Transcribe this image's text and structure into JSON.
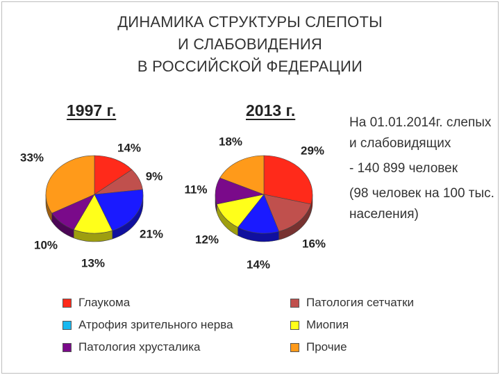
{
  "title_lines": [
    "ДИНАМИКА СТРУКТУРЫ СЛЕПОТЫ",
    "И СЛАБОВИДЕНИЯ",
    "В РОССИЙСКОЙ ФЕДЕРАЦИИ"
  ],
  "info": {
    "line1": "На 01.01.2014г. слепых и слабовидящих",
    "line2": "- 140 899 человек",
    "line3": "(98 человек на 100 тыс. населения)"
  },
  "chart_data": [
    {
      "type": "pie",
      "title": "1997 г.",
      "categories": [
        "Глаукома",
        "Патология сетчатки",
        "Атрофия зрительного нерва",
        "Миопия",
        "Патология хрусталика",
        "Прочие"
      ],
      "values": [
        14,
        9,
        21,
        13,
        10,
        33
      ],
      "labels": [
        "14%",
        "9%",
        "21%",
        "13%",
        "10%",
        "33%"
      ]
    },
    {
      "type": "pie",
      "title": "2013 г.",
      "categories": [
        "Глаукома",
        "Патология сетчатки",
        "Атрофия зрительного нерва",
        "Миопия",
        "Патология хрусталика",
        "Прочие"
      ],
      "values": [
        29,
        16,
        14,
        12,
        11,
        18
      ],
      "labels": [
        "29%",
        "16%",
        "14%",
        "12%",
        "11%",
        "18%"
      ]
    }
  ],
  "legend": [
    {
      "label": "Глаукома",
      "color": "#ff2a1a"
    },
    {
      "label": "Патология сетчатки",
      "color": "#c0504d"
    },
    {
      "label": "Атрофия зрительного нерва",
      "color": "#18b8f0"
    },
    {
      "label": "Миопия",
      "color": "#ffff1a"
    },
    {
      "label": "Патология хрусталика",
      "color": "#7a0a8a"
    },
    {
      "label": "Прочие",
      "color": "#ff9a1a"
    }
  ],
  "slice_colors": [
    "#ff2a1a",
    "#c0504d",
    "#1a1aff",
    "#ffff1a",
    "#7a0a8a",
    "#ff9a1a"
  ]
}
